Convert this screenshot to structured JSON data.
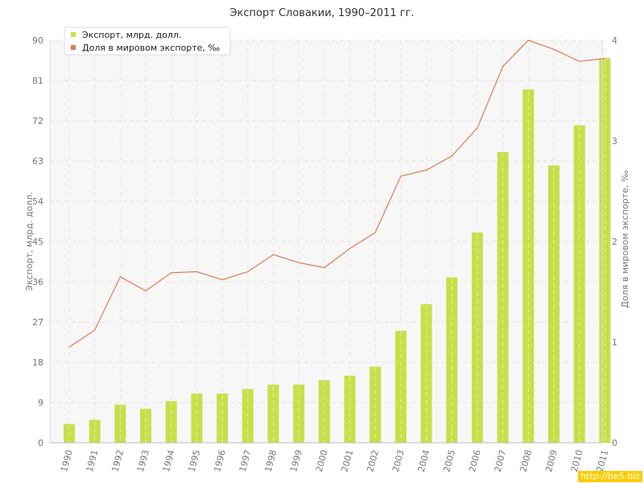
{
  "chart_data": {
    "type": "bar",
    "title": "Экспорт Словакии, 1990–2011 гг.",
    "categories": [
      "1990",
      "1991",
      "1992",
      "1993",
      "1994",
      "1995",
      "1996",
      "1997",
      "1998",
      "1999",
      "2000",
      "2001",
      "2002",
      "2003",
      "2004",
      "2005",
      "2006",
      "2007",
      "2008",
      "2009",
      "2010",
      "2011"
    ],
    "series": [
      {
        "name": "Экспорт, млрд. долл.",
        "type": "bar",
        "axis": "left",
        "color": "#c6e04a",
        "values": [
          4.2,
          5.1,
          8.5,
          7.6,
          9.3,
          11.0,
          11.0,
          12.0,
          13.0,
          13.0,
          14.0,
          15.0,
          17.0,
          25.0,
          31.0,
          37.0,
          47.0,
          65.0,
          79.0,
          62.0,
          71.0,
          86.0
        ]
      },
      {
        "name": "Доля в мировом экспорте, ‰",
        "type": "line",
        "axis": "right",
        "color": "#e07a50",
        "values": [
          0.95,
          1.12,
          1.65,
          1.51,
          1.69,
          1.7,
          1.62,
          1.7,
          1.87,
          1.79,
          1.74,
          1.93,
          2.09,
          2.65,
          2.71,
          2.85,
          3.13,
          3.74,
          4.0,
          3.91,
          3.79,
          3.82
        ]
      }
    ],
    "ylabel": "Экспорт, млрд. долл.",
    "ylabel_right": "Доля в мировом экспорте, ‰",
    "ylim": [
      0,
      90
    ],
    "yticks": [
      "0",
      "9",
      "18",
      "27",
      "36",
      "45",
      "54",
      "63",
      "72",
      "81",
      "90"
    ],
    "ylim_right": [
      0,
      4
    ],
    "yticks_right": [
      "0",
      "1",
      "2",
      "3",
      "4"
    ],
    "grid": true,
    "legend_position": "top-left"
  },
  "watermark": "http://be5.biz"
}
